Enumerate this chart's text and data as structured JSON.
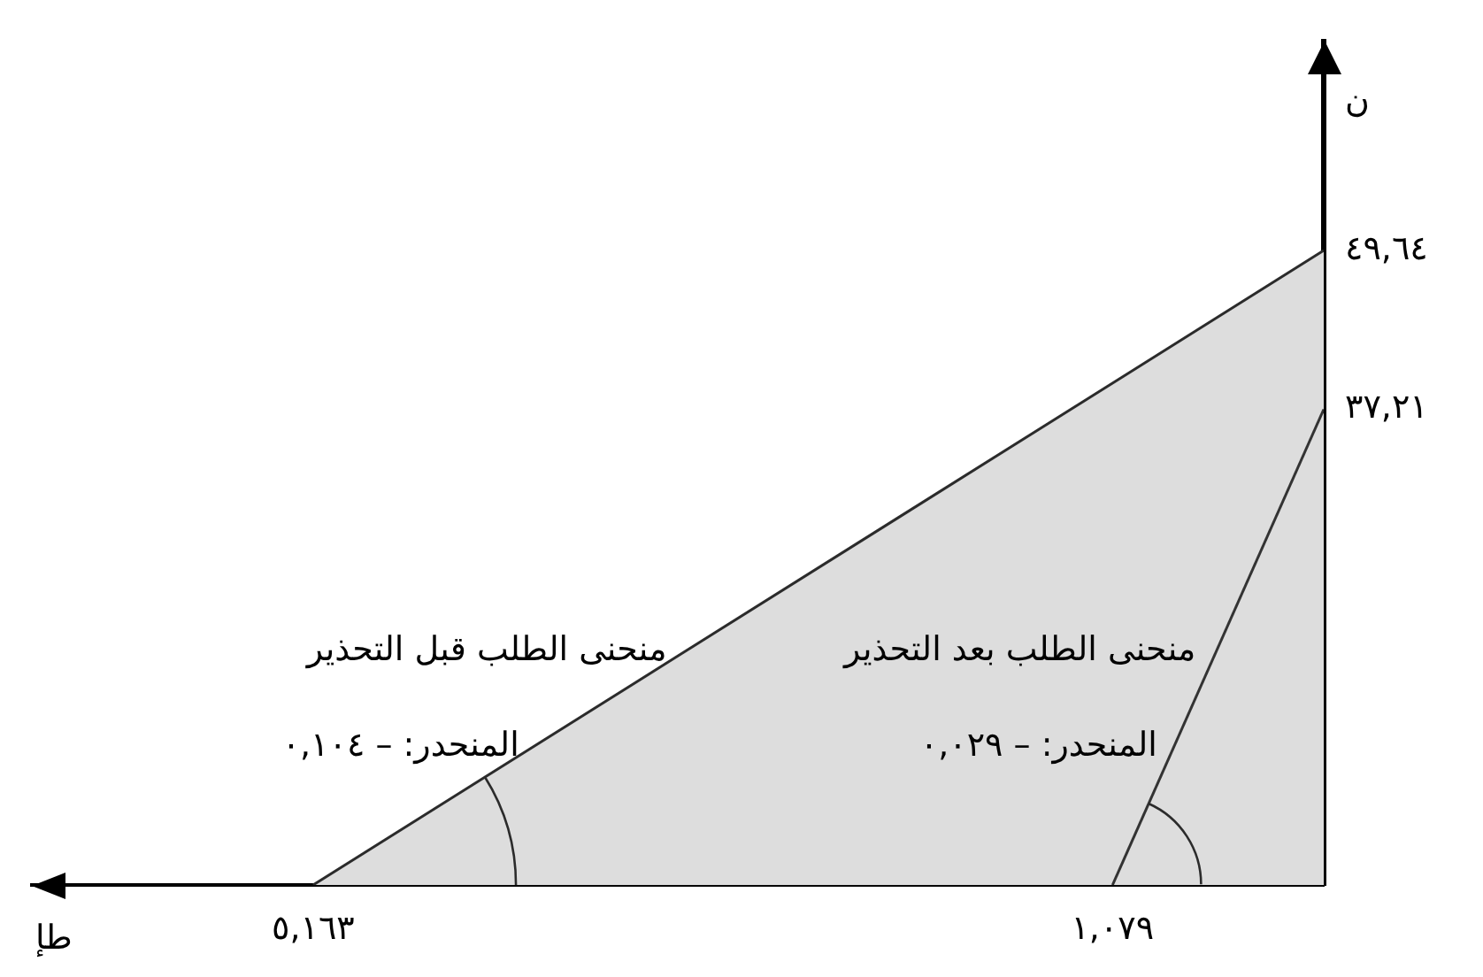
{
  "chart_data": {
    "type": "line",
    "xlabel": "طإ",
    "ylabel": "ن",
    "xlim": [
      6.6,
      0
    ],
    "ylim": [
      0,
      66
    ],
    "xticks": [
      {
        "value": 5.163,
        "label": "٥,١٦٣"
      },
      {
        "value": 1.079,
        "label": "١,٠٧٩"
      }
    ],
    "yticks": [
      {
        "value": 49.64,
        "label": "٤٩,٦٤"
      },
      {
        "value": 37.21,
        "label": "٣٧,٢١"
      }
    ],
    "series": [
      {
        "name": "منحنى الطلب قبل التحذير",
        "type": "area",
        "color": "#dddddd",
        "x": [
          5.163,
          0
        ],
        "values": [
          0,
          49.64
        ]
      },
      {
        "name": "منحنى الطلب بعد التحذير",
        "type": "line",
        "color": "#333333",
        "x": [
          1.079,
          0
        ],
        "values": [
          0,
          37.21
        ]
      }
    ],
    "annotations": [
      {
        "text": "المنحدر: – ٠,١٠٤",
        "x": 4.02,
        "y": 11
      },
      {
        "text": "المنحدر: – ٠,٠٢٩",
        "x": 0.76,
        "y": 11
      }
    ],
    "marker": "none"
  }
}
